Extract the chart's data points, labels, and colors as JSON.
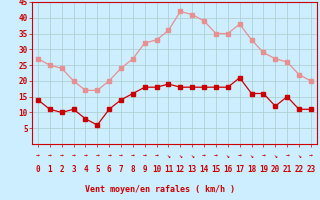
{
  "hours": [
    0,
    1,
    2,
    3,
    4,
    5,
    6,
    7,
    8,
    9,
    10,
    11,
    12,
    13,
    14,
    15,
    16,
    17,
    18,
    19,
    20,
    21,
    22,
    23
  ],
  "wind_avg": [
    14,
    11,
    10,
    11,
    8,
    6,
    11,
    14,
    16,
    18,
    18,
    19,
    18,
    18,
    18,
    18,
    18,
    21,
    16,
    16,
    12,
    15,
    11,
    11
  ],
  "wind_gust": [
    27,
    25,
    24,
    20,
    17,
    17,
    20,
    24,
    27,
    32,
    33,
    36,
    42,
    41,
    39,
    35,
    35,
    38,
    33,
    29,
    27,
    26,
    22,
    20
  ],
  "avg_color": "#cc0000",
  "gust_color": "#e89090",
  "bg_color": "#cceeff",
  "grid_color": "#aacccc",
  "xlabel": "Vent moyen/en rafales ( km/h )",
  "ylim": [
    0,
    45
  ],
  "yticks": [
    5,
    10,
    15,
    20,
    25,
    30,
    35,
    40,
    45
  ],
  "marker_size": 2.5,
  "line_width": 0.9,
  "axis_fontsize": 5.5,
  "xlabel_fontsize": 6.0,
  "arrow_chars": [
    "→",
    "→",
    "→",
    "→",
    "→",
    "→",
    "→",
    "→",
    "→",
    "→",
    "→",
    "↘",
    "↘",
    "↘",
    "→",
    "→",
    "↘",
    "→",
    "↘",
    "→",
    "↘",
    "→",
    "↘",
    "→"
  ]
}
